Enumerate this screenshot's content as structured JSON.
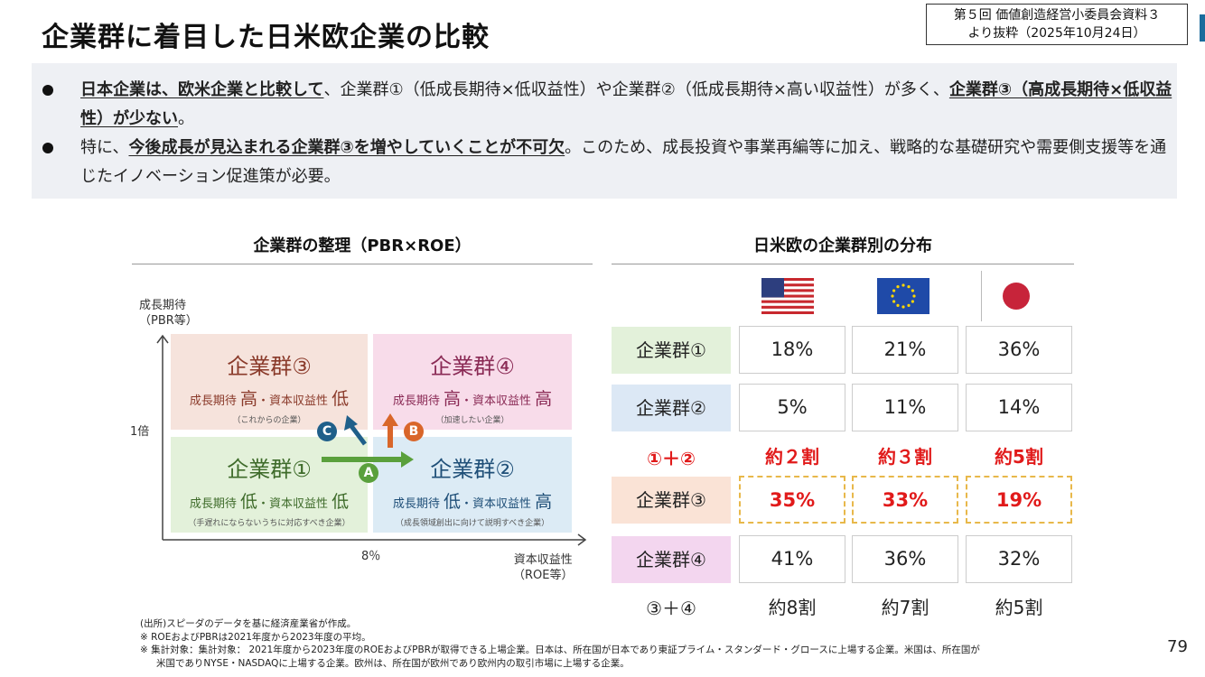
{
  "title": "企業群に着目した日米欧企業の比較",
  "source_box": {
    "line1": "第５回 価値創造経営小委員会資料３",
    "line2": "より抜粋（2025年10月24日）"
  },
  "summary": {
    "bullet1": {
      "p1": "日本企業は、欧米企業と比較して",
      "p2": "、企業群①（低成長期待×低収益性）や企業群②（低成長期待×高い収益性）が多く、",
      "p3": "企業群③（高成長期待×低収益性）が少ない",
      "p4": "。"
    },
    "bullet2": {
      "p1": "特に、",
      "p2": "今後成長が見込まれる企業群③を増やしていくことが不可欠",
      "p3": "。このため、成長投資や事業再編等に加え、戦略的な基礎研究や需要側支援等を通じたイノベーション促進策が必要。"
    }
  },
  "matrix": {
    "title": "企業群の整理（PBR×ROE）",
    "y_axis": {
      "line1": "成長期待",
      "line2": "（PBR等）",
      "tick": "1倍"
    },
    "x_axis": {
      "line1": "資本収益性",
      "line2": "（ROE等）",
      "tick": "8％"
    },
    "quadrants": {
      "q3": {
        "name": "企業群③",
        "d1": "成長期待 ",
        "d2": "高",
        "d3": "・資本収益性 ",
        "d4": "低",
        "note": "（これからの企業）",
        "color": "#f6e3dc",
        "text_color": "#8a3a2a"
      },
      "q4": {
        "name": "企業群④",
        "d1": "成長期待 ",
        "d2": "高",
        "d3": "・資本収益性 ",
        "d4": "高",
        "note": "（加速したい企業）",
        "color": "#f8dcea",
        "text_color": "#8a2a55"
      },
      "q1": {
        "name": "企業群①",
        "d1": "成長期待 ",
        "d2": "低",
        "d3": "・資本収益性 ",
        "d4": "低",
        "note": "（手遅れにならないうちに対応すべき企業）",
        "color": "#e3f1da",
        "text_color": "#3e6b2a"
      },
      "q2": {
        "name": "企業群②",
        "d1": "成長期待 ",
        "d2": "低",
        "d3": "・資本収益性 ",
        "d4": "高",
        "note": "（成長領域創出に向けて説明すべき企業）",
        "color": "#dcebf5",
        "text_color": "#1f4f78"
      }
    },
    "markers": {
      "a": "A",
      "b": "B",
      "c": "C"
    },
    "marker_colors": {
      "a": "#5aa03c",
      "b": "#d9662a",
      "c": "#1f5f8a"
    }
  },
  "distribution": {
    "title": "日米欧の企業群別の分布",
    "flags": [
      "us-flag-icon",
      "eu-flag-icon",
      "jp-flag-icon"
    ],
    "rows": [
      {
        "label": "企業群①",
        "values": [
          "18%",
          "21%",
          "36%"
        ],
        "color": "#e3f1da",
        "highlight": false
      },
      {
        "label": "企業群②",
        "values": [
          "5%",
          "11%",
          "14%"
        ],
        "color": "#dce8f5",
        "highlight": false
      },
      {
        "label": "企業群③",
        "values": [
          "35%",
          "33%",
          "19%"
        ],
        "color": "#fae3d6",
        "highlight": true
      },
      {
        "label": "企業群④",
        "values": [
          "41%",
          "36%",
          "32%"
        ],
        "color": "#f3d6ef",
        "highlight": false
      }
    ],
    "sum12": {
      "label": "①＋②",
      "values": [
        "約２割",
        "約３割",
        "約5割"
      ]
    },
    "sum34": {
      "label": "③＋④",
      "values": [
        "約8割",
        "約7割",
        "約5割"
      ]
    }
  },
  "footnotes": {
    "n1": "(出所)スピーダのデータを基に経済産業省が作成。",
    "n2": "※  ROEおよびPBRは2021年度から2023年度の平均。",
    "n3": "※  集計対象：集計対象：  2021年度から2023年度のROEおよびPBRが取得できる上場企業。日本は、所在国が日本であり東証プライム・スタンダード・グロースに上場する企業。米国は、所在国が",
    "n4": "米国でありNYSE・NASDAQに上場する企業。欧州は、所在国が欧州であり欧州内の取引市場に上場する企業。"
  },
  "page_number": "79"
}
